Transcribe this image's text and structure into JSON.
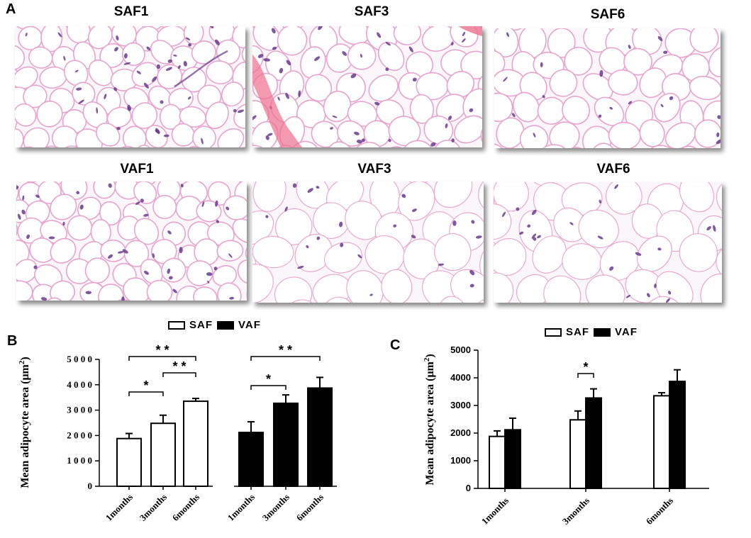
{
  "panels": {
    "a": "A",
    "b": "B",
    "c": "C"
  },
  "colors": {
    "tissue": "#e8a4cf",
    "nuclei": "#6a3b8c",
    "vessel": "#ee6f8f",
    "background": "#fbf6fa"
  },
  "histology": [
    {
      "key": "saf1",
      "title": "SAF1"
    },
    {
      "key": "saf3",
      "title": "SAF3"
    },
    {
      "key": "saf6",
      "title": "SAF6"
    },
    {
      "key": "vaf1",
      "title": "VAF1"
    },
    {
      "key": "vaf3",
      "title": "VAF3"
    },
    {
      "key": "vaf6",
      "title": "VAF6"
    }
  ],
  "legend": {
    "saf": "SAF",
    "vaf": "VAF"
  },
  "chart_data": [
    {
      "panel": "B",
      "type": "bar",
      "ylabel_main": "Mean adipocyte area (μm",
      "ylabel_sup": "2",
      "ylabel_end": ")",
      "ylim": [
        0,
        5000
      ],
      "yticks": [
        "0",
        "1 0 0 0",
        "2 0 0 0",
        "3 0 0 0",
        "4 0 0 0",
        "5 0 0 0"
      ],
      "yvals": [
        0,
        1000,
        2000,
        3000,
        4000,
        5000
      ],
      "bars": [
        {
          "group": "SAF",
          "category": "1months",
          "value": 1880,
          "error": 200
        },
        {
          "group": "SAF",
          "category": "3months",
          "value": 2480,
          "error": 320
        },
        {
          "group": "SAF",
          "category": "6months",
          "value": 3350,
          "error": 110
        },
        {
          "group": "VAF",
          "category": "1months",
          "value": 2120,
          "error": 420
        },
        {
          "group": "VAF",
          "category": "3months",
          "value": 3270,
          "error": 330
        },
        {
          "group": "VAF",
          "category": "6months",
          "value": 3870,
          "error": 420
        }
      ],
      "significance": [
        {
          "from": 0,
          "to": 1,
          "label": "*"
        },
        {
          "from": 1,
          "to": 2,
          "label": "* *"
        },
        {
          "from": 0,
          "to": 2,
          "label": "* *"
        },
        {
          "from": 3,
          "to": 4,
          "label": "*"
        },
        {
          "from": 3,
          "to": 5,
          "label": "* *"
        }
      ]
    },
    {
      "panel": "C",
      "type": "bar",
      "ylabel_main": "Mean adipocyte area (μm",
      "ylabel_sup": "2",
      "ylabel_end": ")",
      "ylim": [
        0,
        5000
      ],
      "yticks": [
        "0",
        "1000",
        "2000",
        "3000",
        "4000",
        "5000"
      ],
      "yvals": [
        0,
        1000,
        2000,
        3000,
        4000,
        5000
      ],
      "categories": [
        "1months",
        "3months",
        "6months"
      ],
      "series": [
        {
          "name": "SAF",
          "values": [
            1880,
            2480,
            3350
          ],
          "errors": [
            200,
            320,
            110
          ]
        },
        {
          "name": "VAF",
          "values": [
            2120,
            3270,
            3870
          ],
          "errors": [
            420,
            330,
            420
          ]
        }
      ],
      "significance": [
        {
          "category": 1,
          "label": "*"
        }
      ]
    }
  ]
}
